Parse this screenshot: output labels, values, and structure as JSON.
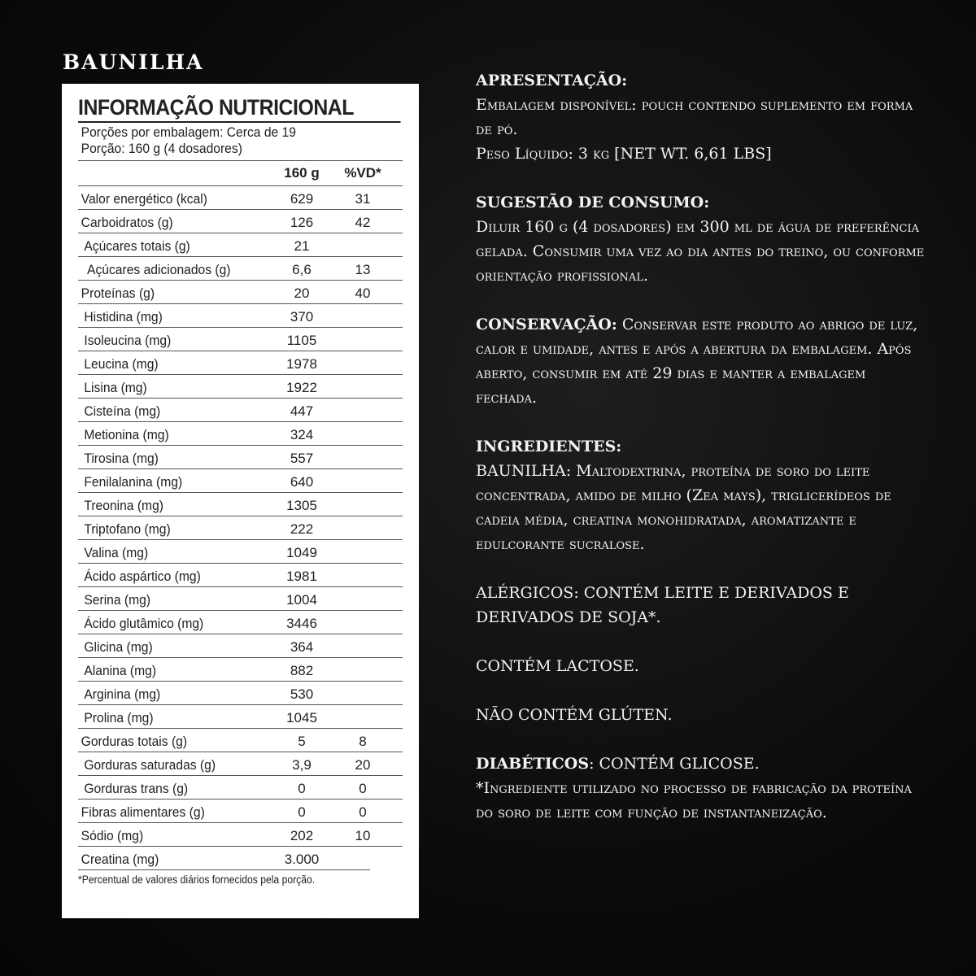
{
  "flavor": "BAUNILHA",
  "nutrition": {
    "title": "INFORMAÇÃO NUTRICIONAL",
    "servings": "Porções por embalagem: Cerca de 19",
    "portion": "Porção: 160 g (4 dosadores)",
    "col_amount": "160 g",
    "col_dv": "%VD*",
    "rows": [
      {
        "label": "Valor energético (kcal)",
        "amount": "629",
        "dv": "31",
        "indent": 0
      },
      {
        "label": "Carboidratos (g)",
        "amount": "126",
        "dv": "42",
        "indent": 0
      },
      {
        "label": "Açúcares totais (g)",
        "amount": "21",
        "dv": "",
        "indent": 1
      },
      {
        "label": "Açúcares adicionados (g)",
        "amount": "6,6",
        "dv": "13",
        "indent": 2
      },
      {
        "label": "Proteínas (g)",
        "amount": "20",
        "dv": "40",
        "indent": 0
      },
      {
        "label": "Histidina (mg)",
        "amount": "370",
        "dv": "",
        "indent": 1
      },
      {
        "label": "Isoleucina (mg)",
        "amount": "1105",
        "dv": "",
        "indent": 1
      },
      {
        "label": "Leucina (mg)",
        "amount": "1978",
        "dv": "",
        "indent": 1
      },
      {
        "label": "Lisina (mg)",
        "amount": "1922",
        "dv": "",
        "indent": 1
      },
      {
        "label": "Cisteína (mg)",
        "amount": "447",
        "dv": "",
        "indent": 1
      },
      {
        "label": "Metionina (mg)",
        "amount": "324",
        "dv": "",
        "indent": 1
      },
      {
        "label": "Tirosina (mg)",
        "amount": "557",
        "dv": "",
        "indent": 1
      },
      {
        "label": "Fenilalanina (mg)",
        "amount": "640",
        "dv": "",
        "indent": 1
      },
      {
        "label": "Treonina (mg)",
        "amount": "1305",
        "dv": "",
        "indent": 1
      },
      {
        "label": "Triptofano (mg)",
        "amount": "222",
        "dv": "",
        "indent": 1
      },
      {
        "label": "Valina (mg)",
        "amount": "1049",
        "dv": "",
        "indent": 1
      },
      {
        "label": "Ácido aspártico (mg)",
        "amount": "1981",
        "dv": "",
        "indent": 1
      },
      {
        "label": "Serina (mg)",
        "amount": "1004",
        "dv": "",
        "indent": 1
      },
      {
        "label": "Ácido glutâmico (mg)",
        "amount": "3446",
        "dv": "",
        "indent": 1
      },
      {
        "label": "Glicina (mg)",
        "amount": "364",
        "dv": "",
        "indent": 1
      },
      {
        "label": "Alanina (mg)",
        "amount": "882",
        "dv": "",
        "indent": 1
      },
      {
        "label": "Arginina (mg)",
        "amount": "530",
        "dv": "",
        "indent": 1
      },
      {
        "label": "Prolina (mg)",
        "amount": "1045",
        "dv": "",
        "indent": 1
      },
      {
        "label": "Gorduras totais (g)",
        "amount": "5",
        "dv": "8",
        "indent": 0
      },
      {
        "label": "Gorduras saturadas (g)",
        "amount": "3,9",
        "dv": "20",
        "indent": 1
      },
      {
        "label": "Gorduras trans (g)",
        "amount": "0",
        "dv": "0",
        "indent": 1
      },
      {
        "label": "Fibras alimentares (g)",
        "amount": "0",
        "dv": "0",
        "indent": 0
      },
      {
        "label": "Sódio (mg)",
        "amount": "202",
        "dv": "10",
        "indent": 0
      },
      {
        "label": "Creatina (mg)",
        "amount": "3.000",
        "dv": "",
        "indent": 0
      }
    ],
    "footnote": "*Percentual de valores diários fornecidos pela porção."
  },
  "info": {
    "apresentacao_title": "APRESENTAÇÃO:",
    "apresentacao_text": "Embalagem disponível: pouch contendo suplemento em forma de pó.",
    "peso": "Peso Líquido: 3 kg [NET WT. 6,61 LBS]",
    "sugestao_title": "SUGESTÃO DE CONSUMO:",
    "sugestao_text": "Diluir 160 g (4 dosadores) em 300 ml de água de preferência gelada. Consumir uma vez ao dia antes do treino, ou conforme orientação profissional.",
    "conservacao_title": "CONSERVAÇÃO:",
    "conservacao_text": "Conservar este produto ao abrigo de luz, calor e umidade, antes e após a abertura da embalagem. Após aberto, consumir em até 29 dias e manter a embalagem fechada.",
    "ingredientes_title": "INGREDIENTES:",
    "ingredientes_text": "BAUNILHA: Maltodextrina, proteína de soro do leite concentrada, amido de milho (Zea mays), triglicerídeos de cadeia média, creatina monohidratada, aromatizante e edulcorante sucralose.",
    "alergicos": "ALÉRGICOS: CONTÉM LEITE E DERIVADOS E DERIVADOS DE SOJA*.",
    "lactose": "CONTÉM LACTOSE.",
    "gluten": "NÃO CONTÉM GLÚTEN.",
    "diabeticos_title": "DIABÉTICOS",
    "diabeticos_text": ": CONTÉM GLICOSE.",
    "nota": "*Ingrediente utilizado no processo de fabricação da proteína do soro de leite com função de instantaneização."
  }
}
